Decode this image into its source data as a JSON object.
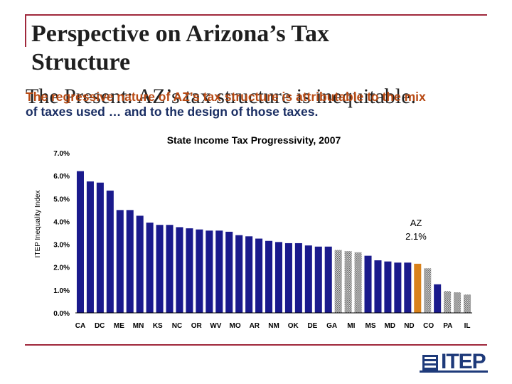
{
  "slide": {
    "title_line1": "Perspective on Arizona’s Tax",
    "title_line2": "Structure",
    "overlay_serif": "The Present:  AZ’s tax structure is inequitable.",
    "overlay_line1": "The regressive nature of AZ’s tax structure is attributable to the mix",
    "overlay_line2": "of taxes used … and to the design of those taxes."
  },
  "logo": {
    "text": "ITEP"
  },
  "chart_data": {
    "type": "bar",
    "title": "State Income Tax Progressivity, 2007",
    "ylabel": "ITEP Inequality Index",
    "xlabel": "",
    "ylim": [
      0,
      7
    ],
    "y_ticks": [
      "0.0%",
      "1.0%",
      "2.0%",
      "3.0%",
      "4.0%",
      "5.0%",
      "6.0%",
      "7.0%"
    ],
    "x_tick_labels": [
      "CA",
      "DC",
      "ME",
      "MN",
      "KS",
      "NC",
      "OR",
      "WV",
      "MO",
      "AR",
      "NM",
      "OK",
      "DE",
      "GA",
      "MI",
      "MS",
      "MD",
      "ND",
      "CO",
      "PA",
      "IL"
    ],
    "values": [
      6.2,
      5.75,
      5.7,
      5.35,
      4.5,
      4.5,
      4.25,
      3.95,
      3.85,
      3.85,
      3.75,
      3.7,
      3.65,
      3.6,
      3.6,
      3.55,
      3.4,
      3.35,
      3.25,
      3.15,
      3.1,
      3.05,
      3.05,
      2.95,
      2.9,
      2.9,
      2.75,
      2.7,
      2.65,
      2.5,
      2.3,
      2.25,
      2.2,
      2.2,
      2.15,
      1.95,
      1.25,
      0.95,
      0.9,
      0.8
    ],
    "bar_styles": [
      "solid",
      "solid",
      "solid",
      "solid",
      "solid",
      "solid",
      "solid",
      "solid",
      "solid",
      "solid",
      "solid",
      "solid",
      "solid",
      "solid",
      "solid",
      "solid",
      "solid",
      "solid",
      "solid",
      "solid",
      "solid",
      "solid",
      "solid",
      "solid",
      "solid",
      "solid",
      "hatched",
      "hatched",
      "hatched",
      "solid",
      "solid",
      "solid",
      "solid",
      "solid",
      "highlight",
      "hatched",
      "solid",
      "hatched",
      "hatched",
      "hatched"
    ],
    "colors": {
      "solid": "#1a1a8c",
      "highlight": "#d9811a",
      "hatched": "#8a8a8a"
    },
    "annotation": {
      "label": "AZ",
      "value": "2.1%"
    }
  }
}
